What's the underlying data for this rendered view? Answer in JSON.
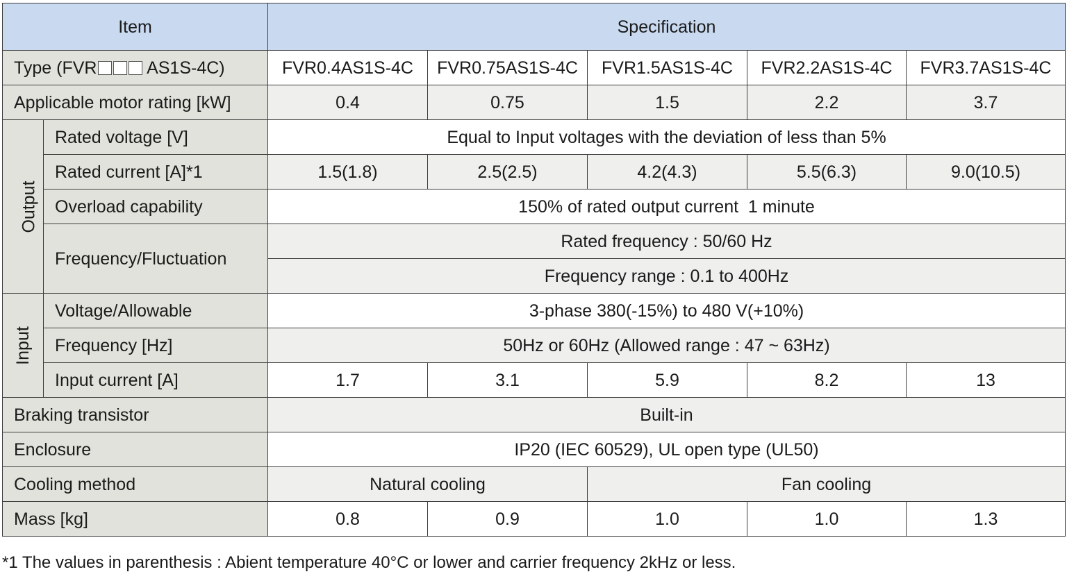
{
  "header": {
    "item": "Item",
    "specification": "Specification"
  },
  "type_row": {
    "label_prefix": "Type (FVR",
    "label_suffix": "AS1S-4C)",
    "values": [
      "FVR0.4AS1S-4C",
      "FVR0.75AS1S-4C",
      "FVR1.5AS1S-4C",
      "FVR2.2AS1S-4C",
      "FVR3.7AS1S-4C"
    ]
  },
  "motor_row": {
    "label": "Applicable motor rating [kW]",
    "values": [
      "0.4",
      "0.75",
      "1.5",
      "2.2",
      "3.7"
    ]
  },
  "output": {
    "group_label": "Output",
    "rated_voltage": {
      "label": "Rated voltage [V]",
      "value": "Equal to Input voltages with the deviation of less than 5%"
    },
    "rated_current": {
      "label": "Rated current [A]*1",
      "values": [
        "1.5(1.8)",
        "2.5(2.5)",
        "4.2(4.3)",
        "5.5(6.3)",
        "9.0(10.5)"
      ]
    },
    "overload": {
      "label": "Overload capability",
      "value": "150% of rated output current  1 minute"
    },
    "frequency": {
      "label": "Frequency/Fluctuation",
      "line1": "Rated frequency : 50/60 Hz",
      "line2": "Frequency range : 0.1 to 400Hz"
    }
  },
  "input": {
    "group_label": "Input",
    "voltage": {
      "label": "Voltage/Allowable",
      "value": "3-phase 380(-15%) to 480 V(+10%)"
    },
    "frequency": {
      "label": "Frequency [Hz]",
      "value": "50Hz or 60Hz (Allowed range : 47 ~ 63Hz)"
    },
    "current": {
      "label": "Input current [A]",
      "values": [
        "1.7",
        "3.1",
        "5.9",
        "8.2",
        "13"
      ]
    }
  },
  "braking": {
    "label": "Braking transistor",
    "value": "Built-in"
  },
  "enclosure": {
    "label": "Enclosure",
    "value": "IP20 (IEC 60529), UL open type (UL50)"
  },
  "cooling": {
    "label": "Cooling method",
    "natural": "Natural cooling",
    "fan": "Fan cooling"
  },
  "mass": {
    "label": "Mass [kg]",
    "values": [
      "0.8",
      "0.9",
      "1.0",
      "1.0",
      "1.3"
    ]
  },
  "footnote": "*1 The values in parenthesis : Abient temperature 40°C or lower and carrier frequency 2kHz or less.",
  "colors": {
    "header_bg": "#c9d9f0",
    "label_bg": "#e2e2dc",
    "alt_row_bg": "#efefee",
    "border": "#3c3c3c"
  }
}
